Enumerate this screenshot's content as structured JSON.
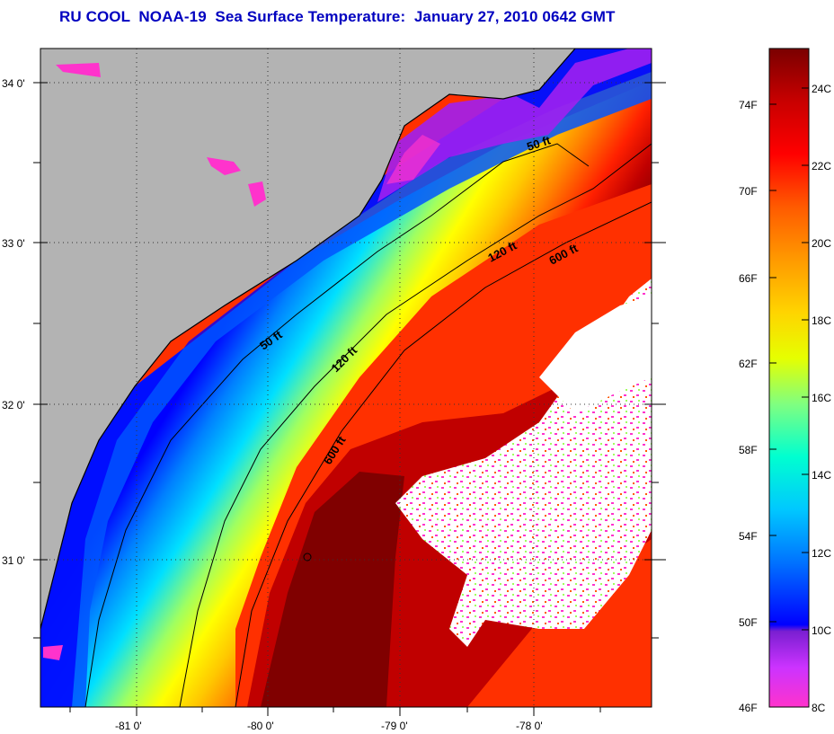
{
  "title": "RU COOL  NOAA-19  Sea Surface Temperature:  January 27, 2010 0642 GMT",
  "map": {
    "latitude_labels": [
      "34 0'",
      "33 0'",
      "32 0'",
      "31 0'"
    ],
    "longitude_labels": [
      "-81 0'",
      "-80 0'",
      "-79 0'",
      "-78 0'"
    ],
    "contour_labels": [
      "50 ft",
      "120 ft",
      "600 ft",
      "50 ft",
      "120 ft",
      "600 ft"
    ],
    "land_color": "#b3b3b3",
    "cloud_color": "#ffffff"
  },
  "colorbar": {
    "fahrenheit_labels": [
      "74F",
      "70F",
      "66F",
      "62F",
      "58F",
      "54F",
      "50F",
      "46F"
    ],
    "celsius_labels": [
      "24C",
      "22C",
      "20C",
      "18C",
      "16C",
      "14C",
      "12C",
      "10C",
      "8C"
    ],
    "range_celsius": [
      8,
      25
    ],
    "colors": [
      "#ff33cc",
      "#cc33ff",
      "#7a1fd1",
      "#0000ff",
      "#0073ff",
      "#00c8ff",
      "#00ffd0",
      "#80ff80",
      "#e6ff00",
      "#ffd400",
      "#ff9900",
      "#ff5a00",
      "#ff0000",
      "#c80000",
      "#7a0000"
    ]
  }
}
